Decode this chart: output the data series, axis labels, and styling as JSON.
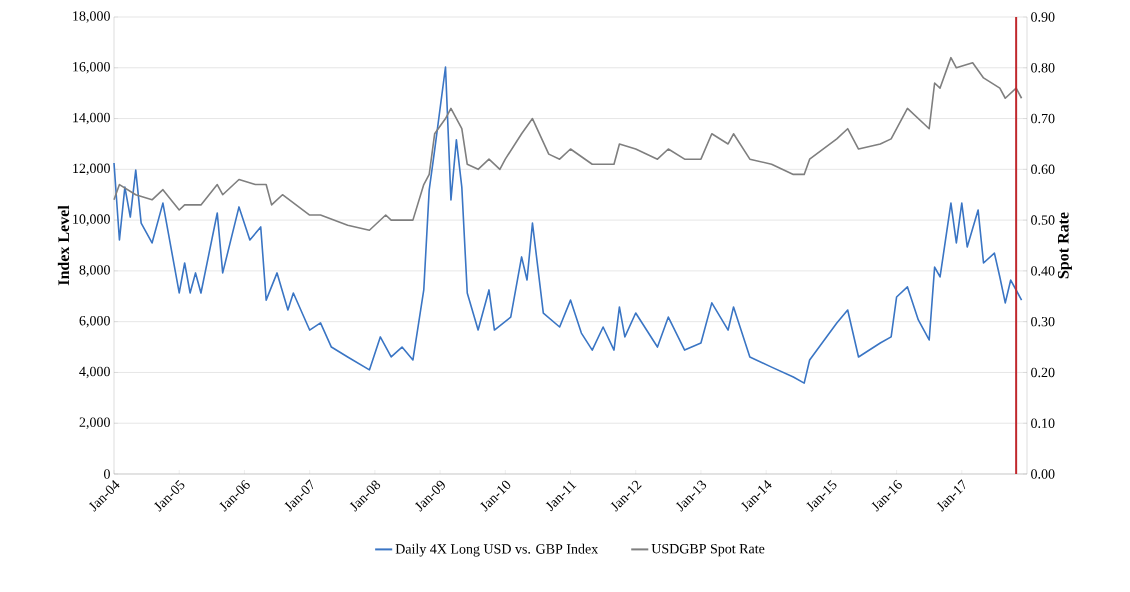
{
  "chart_data": {
    "type": "line",
    "ylabel": "Index Level",
    "y2label": "Spot Rate",
    "xlim": [
      "2004-01",
      "2018-01"
    ],
    "xticks": [
      {
        "value": "2004-01",
        "label": "Jan-04"
      },
      {
        "value": "2005-01",
        "label": "Jan-05"
      },
      {
        "value": "2006-01",
        "label": "Jan-06"
      },
      {
        "value": "2007-01",
        "label": "Jan-07"
      },
      {
        "value": "2008-01",
        "label": "Jan-08"
      },
      {
        "value": "2009-01",
        "label": "Jan-09"
      },
      {
        "value": "2010-01",
        "label": "Jan-10"
      },
      {
        "value": "2011-01",
        "label": "Jan-11"
      },
      {
        "value": "2012-01",
        "label": "Jan-12"
      },
      {
        "value": "2013-01",
        "label": "Jan-13"
      },
      {
        "value": "2014-01",
        "label": "Jan-14"
      },
      {
        "value": "2015-01",
        "label": "Jan-15"
      },
      {
        "value": "2016-01",
        "label": "Jan-16"
      },
      {
        "value": "2017-01",
        "label": "Jan-17"
      }
    ],
    "ylim": [
      0,
      18000
    ],
    "yticks": [
      0,
      {
        "value": 2000,
        "label": "2,000"
      },
      {
        "value": 4000,
        "label": "4,000"
      },
      {
        "value": 6000,
        "label": "6,000"
      },
      {
        "value": 8000,
        "label": "8,000"
      },
      {
        "value": 10000,
        "label": "10,000"
      },
      {
        "value": 12000,
        "label": "12,000"
      },
      {
        "value": 14000,
        "label": "14,000"
      },
      {
        "value": 16000,
        "label": "16,000"
      },
      {
        "value": 18000,
        "label": "18,000"
      }
    ],
    "y2lim": [
      0,
      0.9
    ],
    "y2ticks": [
      {
        "value": 0,
        "label": "0.00"
      },
      {
        "value": 0.1,
        "label": "0.10"
      },
      {
        "value": 0.2,
        "label": "0.20"
      },
      {
        "value": 0.3,
        "label": "0.30"
      },
      {
        "value": 0.4,
        "label": "0.40"
      },
      {
        "value": 0.5,
        "label": "0.50"
      },
      {
        "value": 0.6,
        "label": "0.60"
      },
      {
        "value": 0.7,
        "label": "0.70"
      },
      {
        "value": 0.8,
        "label": "0.80"
      },
      {
        "value": 0.9,
        "label": "0.90"
      }
    ],
    "series": [
      {
        "name": "Daily 4X Long USD vs. GBP Index",
        "color": "#3a75c4",
        "x": [
          "2004-01",
          "2004-02",
          "2004-03",
          "2004-04",
          "2004-05",
          "2004-06",
          "2004-08",
          "2004-10",
          "2005-01",
          "2005-02",
          "2005-03",
          "2005-04",
          "2005-05",
          "2005-08",
          "2005-09",
          "2005-12",
          "2006-02",
          "2006-04",
          "2006-05",
          "2006-07",
          "2006-09",
          "2006-10",
          "2007-01",
          "2007-03",
          "2007-05",
          "2007-08",
          "2007-12",
          "2008-02",
          "2008-04",
          "2008-06",
          "2008-08",
          "2008-10",
          "2008-11",
          "2008-12",
          "2009-02",
          "2009-03",
          "2009-04",
          "2009-05",
          "2009-06",
          "2009-08",
          "2009-10",
          "2009-11",
          "2010-02",
          "2010-04",
          "2010-05",
          "2010-06",
          "2010-08",
          "2010-11",
          "2011-01",
          "2011-03",
          "2011-05",
          "2011-07",
          "2011-09",
          "2011-10",
          "2011-11",
          "2012-01",
          "2012-05",
          "2012-07",
          "2012-10",
          "2013-01",
          "2013-03",
          "2013-06",
          "2013-07",
          "2013-10",
          "2014-02",
          "2014-06",
          "2014-08",
          "2014-09",
          "2015-02",
          "2015-04",
          "2015-06",
          "2015-10",
          "2015-12",
          "2016-01",
          "2016-03",
          "2016-05",
          "2016-07",
          "2016-08",
          "2016-09",
          "2016-11",
          "2016-12",
          "2017-01",
          "2017-02",
          "2017-04",
          "2017-05",
          "2017-07",
          "2017-08",
          "2017-09",
          "2017-10",
          "2017-12"
        ],
        "values": [
          12250,
          9215,
          11300,
          10120,
          11970,
          9880,
          9100,
          10670,
          7130,
          8310,
          7130,
          7920,
          7130,
          10280,
          7920,
          10520,
          9215,
          9730,
          6850,
          7920,
          6460,
          7130,
          5670,
          5950,
          5000,
          4610,
          4100,
          5400,
          4610,
          5000,
          4490,
          7250,
          11190,
          12760,
          16030,
          10790,
          13160,
          11300,
          7130,
          5670,
          7250,
          5670,
          6180,
          8550,
          7640,
          9880,
          6340,
          5790,
          6850,
          5550,
          4880,
          5790,
          4880,
          6580,
          5400,
          6340,
          5000,
          6180,
          4880,
          5160,
          6740,
          5670,
          6580,
          4610,
          4210,
          3820,
          3580,
          4490,
          5950,
          6460,
          4610,
          5160,
          5400,
          6970,
          7370,
          6070,
          5280,
          8150,
          7760,
          10670,
          9100,
          10670,
          8940,
          10400,
          8310,
          8700,
          7760,
          6740,
          7640,
          6850
        ]
      },
      {
        "name": "USDGBP Spot Rate",
        "color": "#7f7f7f",
        "axis": "y2",
        "x": [
          "2004-01",
          "2004-02",
          "2004-05",
          "2004-08",
          "2004-10",
          "2005-01",
          "2005-02",
          "2005-05",
          "2005-08",
          "2005-09",
          "2005-12",
          "2006-03",
          "2006-05",
          "2006-06",
          "2006-08",
          "2007-01",
          "2007-03",
          "2007-08",
          "2007-12",
          "2008-03",
          "2008-04",
          "2008-08",
          "2008-10",
          "2008-11",
          "2008-12",
          "2009-02",
          "2009-03",
          "2009-05",
          "2009-06",
          "2009-08",
          "2009-10",
          "2009-12",
          "2010-01",
          "2010-04",
          "2010-06",
          "2010-09",
          "2010-11",
          "2011-01",
          "2011-05",
          "2011-09",
          "2011-10",
          "2012-01",
          "2012-05",
          "2012-07",
          "2012-10",
          "2013-01",
          "2013-03",
          "2013-06",
          "2013-07",
          "2013-10",
          "2014-02",
          "2014-06",
          "2014-08",
          "2014-09",
          "2015-02",
          "2015-04",
          "2015-06",
          "2015-10",
          "2015-12",
          "2016-03",
          "2016-07",
          "2016-08",
          "2016-09",
          "2016-11",
          "2016-12",
          "2017-03",
          "2017-05",
          "2017-08",
          "2017-09",
          "2017-11",
          "2017-12"
        ],
        "values": [
          0.54,
          0.57,
          0.55,
          0.54,
          0.56,
          0.52,
          0.53,
          0.53,
          0.57,
          0.55,
          0.58,
          0.57,
          0.57,
          0.53,
          0.55,
          0.51,
          0.51,
          0.49,
          0.48,
          0.51,
          0.5,
          0.5,
          0.57,
          0.59,
          0.67,
          0.7,
          0.72,
          0.68,
          0.61,
          0.6,
          0.62,
          0.6,
          0.62,
          0.67,
          0.7,
          0.63,
          0.62,
          0.64,
          0.61,
          0.61,
          0.65,
          0.64,
          0.62,
          0.64,
          0.62,
          0.62,
          0.67,
          0.65,
          0.67,
          0.62,
          0.61,
          0.59,
          0.59,
          0.62,
          0.66,
          0.68,
          0.64,
          0.65,
          0.66,
          0.72,
          0.68,
          0.77,
          0.76,
          0.82,
          0.8,
          0.81,
          0.78,
          0.76,
          0.74,
          0.76,
          0.74
        ]
      }
    ],
    "ref_lines": [
      {
        "axis": "x",
        "value": "2017-11",
        "color": "#c0282d"
      }
    ],
    "grid": "y",
    "legend": "bottom"
  }
}
